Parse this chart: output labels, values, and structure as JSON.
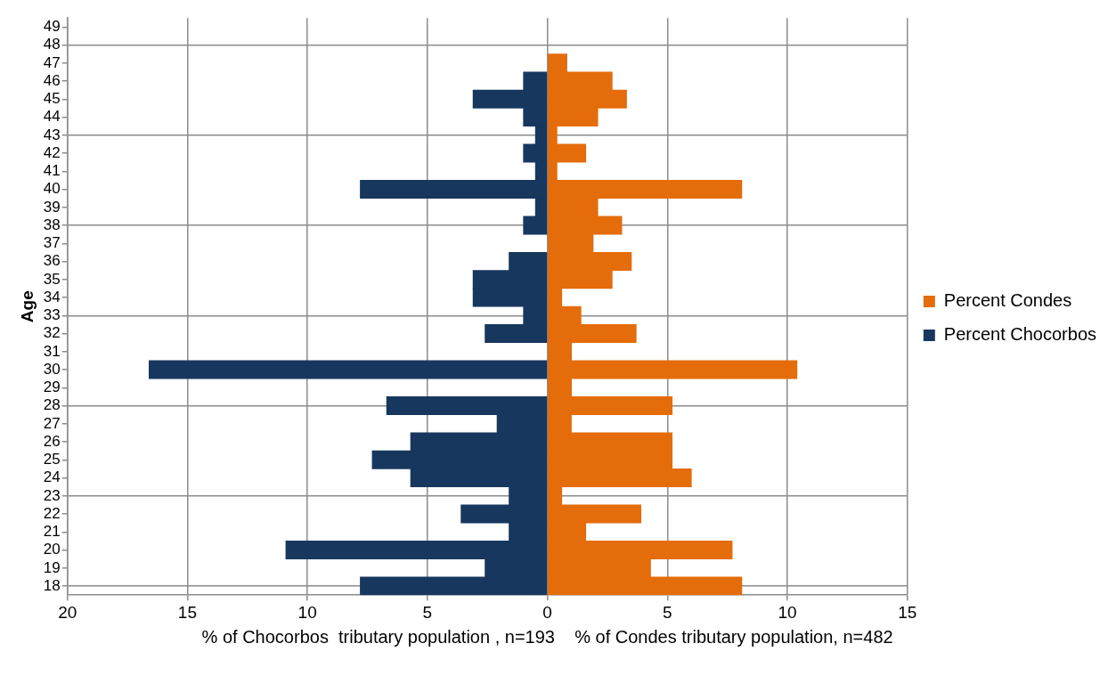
{
  "chart_data": {
    "type": "bar",
    "orientation": "horizontal",
    "stacked": true,
    "ylabel": "Age",
    "xlabel": "% of Chocorbos  tributary population , n=193    % of Condes tributary population, n=482",
    "categories": [
      "49",
      "48",
      "47",
      "46",
      "45",
      "44",
      "43",
      "42",
      "41",
      "40",
      "39",
      "38",
      "37",
      "36",
      "35",
      "34",
      "33",
      "32",
      "31",
      "30",
      "29",
      "28",
      "27",
      "26",
      "25",
      "24",
      "23",
      "22",
      "21",
      "20",
      "19",
      "18"
    ],
    "series": [
      {
        "name": "Percent Condes",
        "color": "#e46c0a",
        "values": [
          null,
          null,
          0.8,
          2.7,
          3.3,
          2.1,
          0.4,
          1.6,
          0.4,
          8.1,
          2.1,
          3.1,
          1.9,
          3.5,
          2.7,
          0.6,
          1.4,
          3.7,
          1.0,
          10.4,
          1.0,
          5.2,
          1.0,
          5.2,
          5.2,
          6.0,
          0.6,
          3.9,
          1.6,
          7.7,
          4.3,
          8.1
        ]
      },
      {
        "name": "Percent Chocorbos",
        "color": "#17375e",
        "values": [
          null,
          null,
          0,
          -1.0,
          -3.1,
          -1.0,
          -0.5,
          -1.0,
          -0.5,
          -7.8,
          -0.5,
          -1.0,
          0,
          -1.6,
          -3.1,
          -3.1,
          -1.0,
          -2.6,
          0,
          -16.6,
          0,
          -6.7,
          -2.1,
          -5.7,
          -7.3,
          -5.7,
          -1.6,
          -3.6,
          -1.6,
          -10.9,
          -2.6,
          -7.8
        ]
      }
    ],
    "xlim": [
      -20,
      15
    ],
    "xticks": [
      {
        "value": -20,
        "label": "20"
      },
      {
        "value": -15,
        "label": "15"
      },
      {
        "value": -10,
        "label": "10"
      },
      {
        "value": -5,
        "label": "5"
      },
      0,
      5,
      10,
      15
    ],
    "grid": true,
    "legend": "right"
  }
}
